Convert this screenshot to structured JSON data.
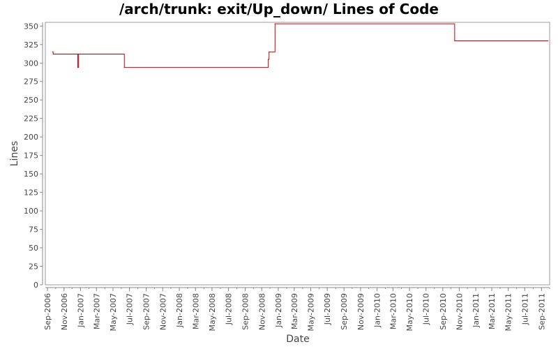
{
  "chart_data": {
    "type": "line",
    "title": "/arch/trunk: exit/Up_down/ Lines of Code",
    "xlabel": "Date",
    "ylabel": "Lines",
    "ylim": [
      0,
      355
    ],
    "xlim": [
      "2006-08-24",
      "2011-10-01"
    ],
    "y_ticks": [
      0,
      25,
      50,
      75,
      100,
      125,
      150,
      175,
      200,
      225,
      250,
      275,
      300,
      325,
      350
    ],
    "x_ticks": [
      {
        "label": "Sep-2006",
        "date": "2006-09-01"
      },
      {
        "label": "Nov-2006",
        "date": "2006-11-01"
      },
      {
        "label": "Jan-2007",
        "date": "2007-01-01"
      },
      {
        "label": "Mar-2007",
        "date": "2007-03-01"
      },
      {
        "label": "May-2007",
        "date": "2007-05-01"
      },
      {
        "label": "Jul-2007",
        "date": "2007-07-01"
      },
      {
        "label": "Sep-2007",
        "date": "2007-09-01"
      },
      {
        "label": "Nov-2007",
        "date": "2007-11-01"
      },
      {
        "label": "Jan-2008",
        "date": "2008-01-01"
      },
      {
        "label": "Mar-2008",
        "date": "2008-03-01"
      },
      {
        "label": "May-2008",
        "date": "2008-05-01"
      },
      {
        "label": "Jul-2008",
        "date": "2008-07-01"
      },
      {
        "label": "Sep-2008",
        "date": "2008-09-01"
      },
      {
        "label": "Nov-2008",
        "date": "2008-11-01"
      },
      {
        "label": "Jan-2009",
        "date": "2009-01-01"
      },
      {
        "label": "Mar-2009",
        "date": "2009-03-01"
      },
      {
        "label": "May-2009",
        "date": "2009-05-01"
      },
      {
        "label": "Jul-2009",
        "date": "2009-07-01"
      },
      {
        "label": "Sep-2009",
        "date": "2009-09-01"
      },
      {
        "label": "Nov-2009",
        "date": "2009-11-01"
      },
      {
        "label": "Jan-2010",
        "date": "2010-01-01"
      },
      {
        "label": "Mar-2010",
        "date": "2010-03-01"
      },
      {
        "label": "May-2010",
        "date": "2010-05-01"
      },
      {
        "label": "Jul-2010",
        "date": "2010-07-01"
      },
      {
        "label": "Sep-2010",
        "date": "2010-09-01"
      },
      {
        "label": "Nov-2010",
        "date": "2010-11-01"
      },
      {
        "label": "Jan-2011",
        "date": "2011-01-01"
      },
      {
        "label": "Mar-2011",
        "date": "2011-03-01"
      },
      {
        "label": "May-2011",
        "date": "2011-05-01"
      },
      {
        "label": "Jul-2011",
        "date": "2011-07-01"
      },
      {
        "label": "Sep-2011",
        "date": "2011-09-01"
      }
    ],
    "grid": false,
    "legend": "none",
    "series": [
      {
        "step": true,
        "color": "#cc0000",
        "points": [
          {
            "date": "2006-09-20",
            "value": 315
          },
          {
            "date": "2006-09-22",
            "value": 312
          },
          {
            "date": "2006-12-22",
            "value": 294
          },
          {
            "date": "2006-12-25",
            "value": 312
          },
          {
            "date": "2007-06-12",
            "value": 294
          },
          {
            "date": "2008-11-25",
            "value": 305
          },
          {
            "date": "2008-11-28",
            "value": 315
          },
          {
            "date": "2008-12-20",
            "value": 353
          },
          {
            "date": "2010-10-15",
            "value": 330
          },
          {
            "date": "2011-09-25",
            "value": 330
          }
        ]
      }
    ]
  }
}
